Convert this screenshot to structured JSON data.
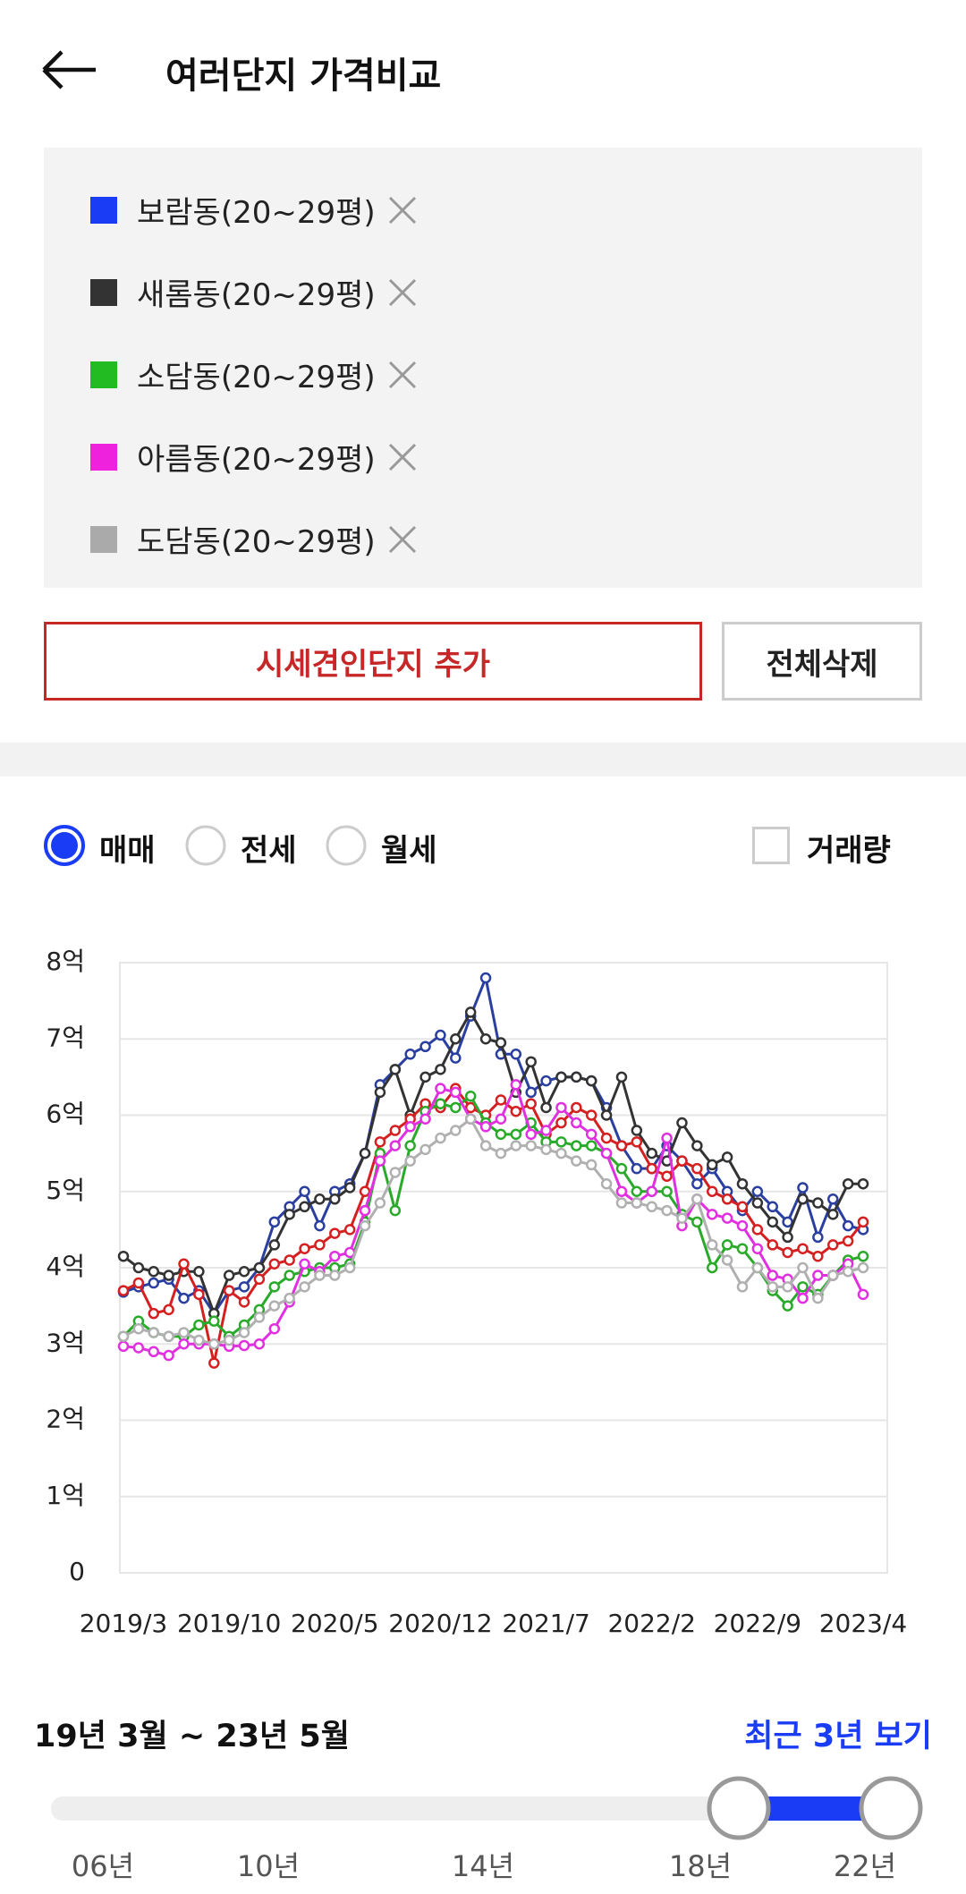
{
  "header": {
    "title": "여러단지 가격비교"
  },
  "legend": [
    {
      "name": "보람동(20~29평)",
      "color": "#1a3cf5"
    },
    {
      "name": "새롬동(20~29평)",
      "color": "#333333"
    },
    {
      "name": "소담동(20~29평)",
      "color": "#22bb22"
    },
    {
      "name": "아름동(20~29평)",
      "color": "#ee22dd"
    },
    {
      "name": "도담동(20~29평)",
      "color": "#aaaaaa"
    }
  ],
  "buttons": {
    "add": "시세견인단지 추가",
    "clear": "전체삭제"
  },
  "tabs": {
    "options": [
      "매매",
      "전세",
      "월세"
    ],
    "selected": 0,
    "volume": "거래량"
  },
  "chart_data": {
    "type": "line",
    "categories": [
      "2019/3",
      null,
      null,
      null,
      null,
      null,
      null,
      "2019/10",
      null,
      null,
      null,
      null,
      null,
      null,
      "2020/5",
      null,
      null,
      null,
      null,
      null,
      null,
      "2020/12",
      null,
      null,
      null,
      null,
      null,
      null,
      "2021/7",
      null,
      null,
      null,
      null,
      null,
      null,
      "2022/2",
      null,
      null,
      null,
      null,
      null,
      null,
      "2022/9",
      null,
      null,
      null,
      null,
      null,
      null,
      "2023/4"
    ],
    "series": [
      {
        "color": "#2a3f9f",
        "values": [
          3.68,
          3.75,
          3.8,
          3.85,
          3.6,
          3.7,
          3.4,
          3.7,
          3.75,
          4.0,
          4.6,
          4.8,
          5.0,
          4.55,
          5.0,
          5.1,
          5.5,
          6.4,
          6.6,
          6.8,
          6.9,
          7.05,
          6.75,
          7.3,
          7.8,
          6.8,
          6.8,
          6.3,
          6.45,
          6.5,
          6.5,
          6.45,
          6.1,
          5.6,
          5.3,
          5.3,
          5.6,
          5.4,
          5.1,
          5.3,
          5.0,
          4.75,
          5.0,
          4.8,
          4.6,
          5.05,
          4.4,
          4.9,
          4.55,
          4.5
        ]
      },
      {
        "color": "#333333",
        "values": [
          4.15,
          4.0,
          3.95,
          3.9,
          3.95,
          3.95,
          3.4,
          3.9,
          3.95,
          4.0,
          4.3,
          4.7,
          4.8,
          4.9,
          4.9,
          5.05,
          5.5,
          6.3,
          6.6,
          6.0,
          6.5,
          6.6,
          7.0,
          7.35,
          7.0,
          6.95,
          6.3,
          6.7,
          6.1,
          6.5,
          6.5,
          6.45,
          6.0,
          6.5,
          5.8,
          5.5,
          5.4,
          5.9,
          5.6,
          5.35,
          5.45,
          5.1,
          4.85,
          4.6,
          4.4,
          4.9,
          4.85,
          4.7,
          5.1,
          5.1
        ]
      },
      {
        "color": "#d42020",
        "values": [
          3.7,
          3.8,
          3.4,
          3.45,
          4.05,
          3.65,
          2.75,
          3.7,
          3.55,
          3.85,
          4.05,
          4.1,
          4.25,
          4.3,
          4.45,
          4.5,
          5.0,
          5.65,
          5.8,
          5.95,
          6.15,
          6.1,
          6.35,
          6.1,
          6.0,
          6.2,
          6.05,
          6.15,
          5.75,
          5.9,
          6.1,
          6.0,
          5.7,
          5.6,
          5.65,
          5.3,
          5.2,
          5.4,
          5.3,
          5.0,
          4.9,
          4.8,
          4.5,
          4.3,
          4.2,
          4.25,
          4.15,
          4.3,
          4.35,
          4.6
        ]
      },
      {
        "color": "#2aaa2a",
        "values": [
          3.1,
          3.3,
          3.15,
          3.1,
          3.1,
          3.25,
          3.3,
          3.1,
          3.25,
          3.45,
          3.75,
          3.9,
          3.95,
          4.0,
          4.0,
          4.05,
          4.6,
          5.5,
          4.75,
          5.6,
          6.05,
          6.15,
          6.1,
          6.25,
          5.9,
          5.75,
          5.75,
          5.9,
          5.65,
          5.65,
          5.6,
          5.6,
          5.5,
          5.3,
          5.0,
          5.0,
          5.0,
          4.7,
          4.6,
          4.0,
          4.3,
          4.25,
          4.0,
          3.7,
          3.5,
          3.75,
          3.65,
          3.9,
          4.1,
          4.15
        ]
      },
      {
        "color": "#e030e0",
        "values": [
          2.97,
          2.95,
          2.9,
          2.85,
          3.0,
          3.0,
          3.0,
          2.97,
          2.98,
          3.0,
          3.2,
          3.55,
          4.05,
          3.95,
          4.15,
          4.2,
          4.75,
          5.4,
          5.6,
          5.85,
          5.95,
          6.35,
          6.3,
          5.95,
          5.85,
          5.95,
          6.4,
          5.75,
          5.8,
          6.1,
          5.9,
          5.75,
          5.5,
          5.0,
          4.85,
          5.0,
          5.7,
          4.55,
          4.9,
          4.7,
          4.65,
          4.55,
          4.25,
          3.9,
          3.85,
          3.6,
          3.9,
          3.9,
          4.05,
          3.65
        ]
      },
      {
        "color": "#b0b0b0",
        "values": [
          3.1,
          3.2,
          3.15,
          3.1,
          3.15,
          3.05,
          3.0,
          3.05,
          3.15,
          3.35,
          3.5,
          3.6,
          3.75,
          3.9,
          3.9,
          4.0,
          4.55,
          4.85,
          5.25,
          5.4,
          5.55,
          5.7,
          5.8,
          5.95,
          5.6,
          5.5,
          5.6,
          5.6,
          5.55,
          5.5,
          5.4,
          5.35,
          5.1,
          4.85,
          4.85,
          4.8,
          4.75,
          4.65,
          4.9,
          4.3,
          4.1,
          3.75,
          4.0,
          3.75,
          3.75,
          4.0,
          3.6,
          3.9,
          3.95,
          4.0
        ]
      }
    ],
    "ylim": [
      0,
      8
    ],
    "yticks": [
      0,
      {
        "value": 1,
        "label": "1억"
      },
      {
        "value": 2,
        "label": "2억"
      },
      {
        "value": 3,
        "label": "3억"
      },
      {
        "value": 4,
        "label": "4억"
      },
      {
        "value": 5,
        "label": "5억"
      },
      {
        "value": 6,
        "label": "6억"
      },
      {
        "value": 7,
        "label": "7억"
      },
      {
        "value": 8,
        "label": "8억"
      }
    ],
    "grid": true
  },
  "range": {
    "label": "19년 3월 ~ 23년 5월",
    "recent": "최근 3년 보기",
    "ticks": [
      "06년",
      "10년",
      "14년",
      "18년",
      "22년"
    ]
  }
}
